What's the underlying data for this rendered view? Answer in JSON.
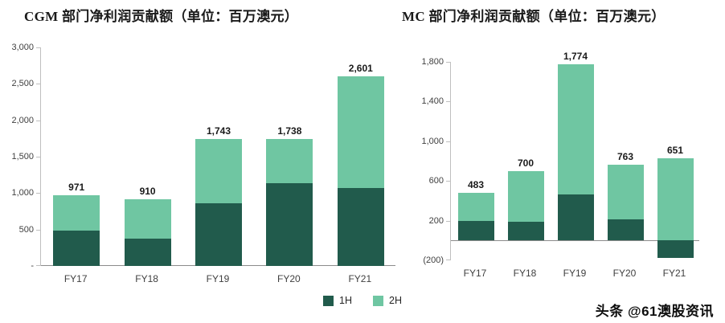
{
  "chart_data": [
    {
      "type": "bar",
      "stacked": true,
      "title": "CGM 部门净利润贡献额（单位：百万澳元）",
      "categories": [
        "FY17",
        "FY18",
        "FY19",
        "FY20",
        "FY21"
      ],
      "series": [
        {
          "name": "1H",
          "values": [
            480,
            370,
            858,
            1135,
            1075
          ]
        },
        {
          "name": "2H",
          "values": [
            491,
            540,
            885,
            603,
            1526
          ]
        }
      ],
      "totals": [
        971,
        910,
        1743,
        1738,
        2601
      ],
      "total_labels": [
        "971",
        "910",
        "1,743",
        "1,738",
        "2,601"
      ],
      "ylim": [
        0,
        3000
      ],
      "y_ticks": [
        {
          "label": "3,000",
          "value": 3000
        },
        {
          "label": "2,500",
          "value": 2500
        },
        {
          "label": "2,000",
          "value": 2000
        },
        {
          "label": "1,500",
          "value": 1500
        },
        {
          "label": "1,000",
          "value": 1000
        },
        {
          "label": "500",
          "value": 500
        },
        {
          "label": "-",
          "value": 0
        }
      ],
      "grid": false,
      "bar_ratio": 0.66
    },
    {
      "type": "bar",
      "stacked": true,
      "title": "MC 部门净利润贡献额（单位：百万澳元）",
      "categories": [
        "FY17",
        "FY18",
        "FY19",
        "FY20",
        "FY21"
      ],
      "series": [
        {
          "name": "1H",
          "values": [
            200,
            190,
            460,
            210,
            -175
          ]
        },
        {
          "name": "2H",
          "values": [
            283,
            510,
            1314,
            553,
            826
          ]
        }
      ],
      "totals": [
        483,
        700,
        1774,
        763,
        651
      ],
      "total_labels": [
        "483",
        "700",
        "1,774",
        "763",
        "651"
      ],
      "ylim": [
        -200,
        1800
      ],
      "y_ticks": [
        {
          "label": "1,800",
          "value": 1800
        },
        {
          "label": "1,400",
          "value": 1400
        },
        {
          "label": "1,000",
          "value": 1000
        },
        {
          "label": "600",
          "value": 600
        },
        {
          "label": "200",
          "value": 200
        },
        {
          "label": "(200)",
          "value": -200
        }
      ],
      "grid": false,
      "bar_ratio": 0.73
    }
  ],
  "legend": {
    "position": "bottom-center",
    "items": [
      {
        "label": "1H",
        "color": "#215B4C"
      },
      {
        "label": "2H",
        "color": "#6FC6A2"
      }
    ]
  },
  "watermark": "头条 @61澳股资讯",
  "colors": {
    "series_1h": "#215B4C",
    "series_2h": "#6FC6A2",
    "axis_line": "#8c8c8c",
    "tick_line": "#bfbfbf",
    "text": "#262626"
  }
}
